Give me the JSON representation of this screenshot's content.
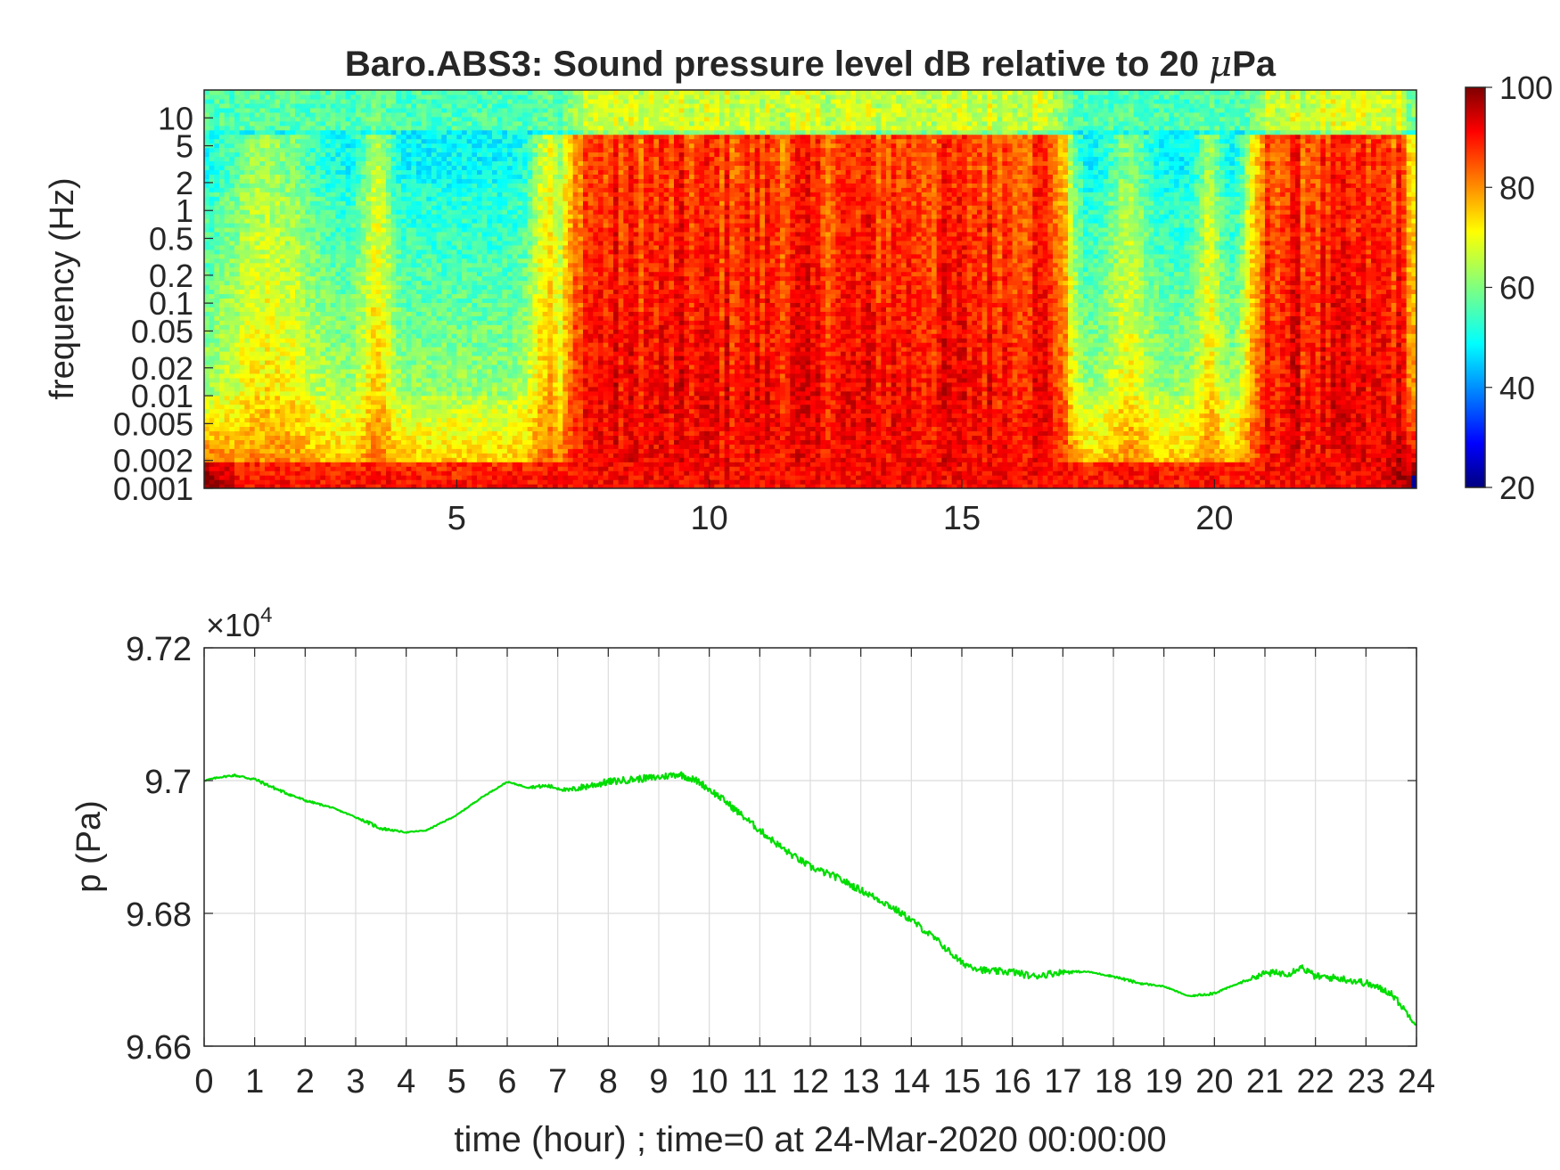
{
  "chart_data": [
    {
      "type": "heatmap",
      "title": "Baro.ABS3: Sound pressure level dB relative to 20 μPa",
      "title_parts": {
        "prefix": "Baro.ABS3: Sound pressure level dB relative to 20 ",
        "mu": "μ",
        "unit": "Pa"
      },
      "ylabel": "frequency (Hz)",
      "xlabel": "",
      "y_scale": "log",
      "xlim": [
        0,
        24
      ],
      "ylim": [
        0.001,
        20
      ],
      "x_ticks": [
        5,
        10,
        15,
        20
      ],
      "x_tick_labels": [
        "5",
        "10",
        "15",
        "20"
      ],
      "y_ticks": [
        0.001,
        0.002,
        0.005,
        0.01,
        0.02,
        0.05,
        0.1,
        0.2,
        0.5,
        1,
        2,
        5,
        10
      ],
      "y_tick_labels": [
        "0.001",
        "0.002",
        "0.005",
        "0.01",
        "0.02",
        "0.05",
        "0.1",
        "0.2",
        "0.5",
        "1",
        "2",
        "5",
        "10"
      ],
      "colormap": "jet",
      "colorbar": {
        "clim": [
          20,
          100
        ],
        "ticks": [
          20,
          40,
          60,
          80,
          100
        ],
        "tick_labels": [
          "20",
          "40",
          "60",
          "80",
          "100"
        ]
      },
      "noisy_intervals_hours": [
        [
          7.2,
          17.1
        ],
        [
          20.8,
          24
        ]
      ],
      "level_dB_noisy_at_0.05Hz": 88,
      "level_dB_quiet_at_0.05Hz": 56,
      "level_dB_at_0.001Hz": 90
    },
    {
      "type": "line",
      "title": "",
      "xlabel": "time (hour) ; time=0 at 24-Mar-2020 00:00:00",
      "ylabel": "p (Pa)",
      "y_exponent_label": {
        "base": "×10",
        "exp": "4"
      },
      "xlim": [
        0,
        24
      ],
      "ylim": [
        9.66,
        9.72
      ],
      "x_ticks": [
        0,
        1,
        2,
        3,
        4,
        5,
        6,
        7,
        8,
        9,
        10,
        11,
        12,
        13,
        14,
        15,
        16,
        17,
        18,
        19,
        20,
        21,
        22,
        23,
        24
      ],
      "x_tick_labels": [
        "0",
        "1",
        "2",
        "3",
        "4",
        "5",
        "6",
        "7",
        "8",
        "9",
        "10",
        "11",
        "12",
        "13",
        "14",
        "15",
        "16",
        "17",
        "18",
        "19",
        "20",
        "21",
        "22",
        "23",
        "24"
      ],
      "y_ticks": [
        9.66,
        9.68,
        9.7,
        9.72
      ],
      "y_tick_labels": [
        "9.66",
        "9.68",
        "9.7",
        "9.72"
      ],
      "grid": true,
      "series": [
        {
          "color": "#00dd00",
          "x": [
            0,
            0.3,
            0.6,
            1.0,
            1.5,
            2.0,
            2.5,
            3.0,
            3.5,
            4.0,
            4.4,
            5.0,
            5.5,
            6.0,
            6.4,
            6.8,
            7.2,
            7.6,
            8.0,
            8.5,
            9.0,
            9.4,
            9.8,
            10.3,
            11.0,
            11.5,
            12.0,
            12.5,
            13.0,
            13.5,
            14.0,
            14.5,
            15.0,
            15.5,
            16.0,
            16.4,
            17.0,
            17.5,
            18.0,
            18.5,
            19.0,
            19.5,
            20.0,
            20.5,
            21.0,
            21.5,
            21.7,
            22.0,
            22.5,
            23.0,
            23.5,
            24.0
          ],
          "y": [
            9.7,
            9.7005,
            9.7008,
            9.7002,
            9.6985,
            9.697,
            9.696,
            9.6945,
            9.6928,
            9.6922,
            9.6925,
            9.6948,
            9.6975,
            9.6998,
            9.699,
            9.6992,
            9.6985,
            9.6992,
            9.6998,
            9.7002,
            9.7005,
            9.701,
            9.6998,
            9.697,
            9.6925,
            9.6895,
            9.687,
            9.6855,
            9.6835,
            9.6815,
            9.679,
            9.676,
            9.6725,
            9.6713,
            9.6712,
            9.6705,
            9.6712,
            9.6712,
            9.6705,
            9.6695,
            9.669,
            9.6675,
            9.668,
            9.6695,
            9.671,
            9.671,
            9.672,
            9.6705,
            9.6702,
            9.6695,
            9.668,
            9.6632
          ]
        }
      ]
    }
  ]
}
